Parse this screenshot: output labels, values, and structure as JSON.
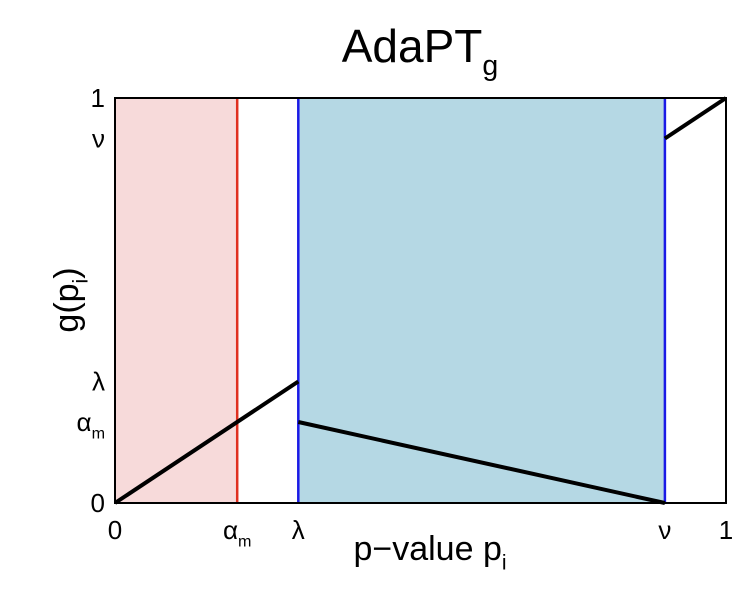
{
  "chart_data": {
    "type": "line",
    "title": {
      "main": "AdaPT",
      "subscript": "g"
    },
    "x_label": {
      "main": "p−value p",
      "subscript": "i"
    },
    "y_label": {
      "main": "g(p",
      "subscript": "i",
      "end": ")"
    },
    "xlim": [
      0,
      1
    ],
    "ylim": [
      0,
      1
    ],
    "xticks": [
      0,
      {
        "value": 0.2,
        "label": "α",
        "subscript": "m"
      },
      {
        "value": 0.3,
        "label": "λ"
      },
      {
        "value": 0.9,
        "label": "ν"
      },
      1
    ],
    "yticks": [
      0,
      {
        "value": 0.2,
        "label": "α",
        "subscript": "m"
      },
      {
        "value": 0.3,
        "label": "λ"
      },
      {
        "value": 0.9,
        "label": "ν"
      },
      1
    ],
    "regions": [
      {
        "from": 0,
        "to": 0.2,
        "color": "#f7dada"
      },
      {
        "from": 0.3,
        "to": 0.9,
        "color": "#b5d8e4"
      }
    ],
    "vlines": [
      {
        "x": 0.2,
        "color": "#e03020"
      },
      {
        "x": 0.3,
        "color": "#1a1ae6"
      },
      {
        "x": 0.9,
        "color": "#1a1ae6"
      }
    ],
    "series": [
      {
        "color": "#000000",
        "x": [
          0,
          0.3
        ],
        "values": [
          0,
          0.3
        ]
      },
      {
        "color": "#000000",
        "x": [
          0.3,
          0.9
        ],
        "values": [
          0.2,
          0
        ]
      },
      {
        "color": "#000000",
        "x": [
          0.9,
          1
        ],
        "values": [
          0.9,
          1
        ]
      }
    ]
  }
}
